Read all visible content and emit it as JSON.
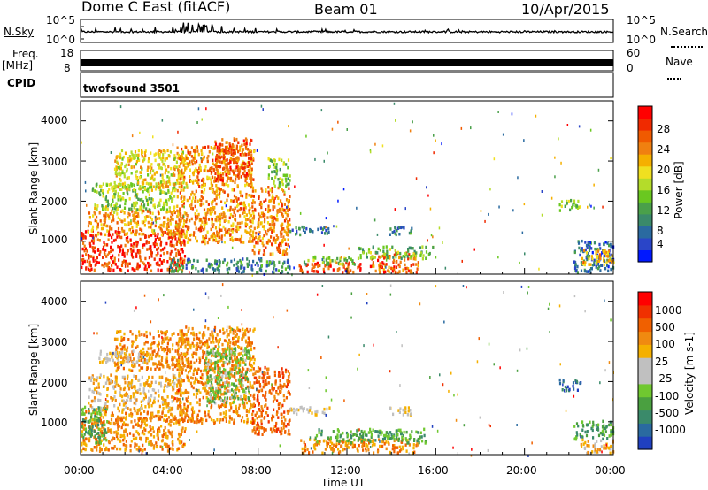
{
  "header": {
    "station": "Dome C East (fitACF)",
    "beam": "Beam 01",
    "date": "10/Apr/2015"
  },
  "strip_panels": {
    "nsky": {
      "label": "N.Sky",
      "ticks": [
        "10^5",
        "10^0"
      ]
    },
    "nsearch": {
      "label": "N.Search",
      "ticks": [
        "10^5",
        "10^0"
      ]
    },
    "freq": {
      "label_top": "Freq.",
      "label_unit": "[MHz]",
      "ticks": [
        "18",
        "8"
      ]
    },
    "nave": {
      "label": "Nave",
      "ticks": [
        "60",
        "0"
      ]
    },
    "cpid": {
      "label": "CPID",
      "value": "twofsound 3501"
    }
  },
  "chart_data": [
    {
      "type": "heatmap",
      "name": "power",
      "ylabel": "Slant Range [km]",
      "xlabel": "Time UT",
      "x_ticks": [
        "00:00",
        "04:00",
        "08:00",
        "12:00",
        "16:00",
        "20:00",
        "00:00"
      ],
      "x_range_hours": [
        0,
        24
      ],
      "y_ticks": [
        1000,
        2000,
        3000,
        4000
      ],
      "y_range_km": [
        180,
        4500
      ],
      "colorbar": {
        "label": "Power [dB]",
        "ticks": [
          "28",
          "24",
          "20",
          "16",
          "12",
          "8",
          "4"
        ],
        "range": [
          0,
          30
        ],
        "colors": [
          "#0018ff",
          "#2a45c8",
          "#2a6aa0",
          "#3a8a6a",
          "#4aa04a",
          "#6ac820",
          "#b4dc2a",
          "#f0e020",
          "#f5b000",
          "#f08010",
          "#f05a00",
          "#f02a00",
          "#ff0000"
        ]
      },
      "regions": [
        {
          "t0": 0.0,
          "t1": 4.7,
          "r0": 300,
          "r1": 1300,
          "value": 27
        },
        {
          "t0": 0.3,
          "t1": 4.5,
          "r0": 1200,
          "r1": 1800,
          "value": 21
        },
        {
          "t0": 0.5,
          "t1": 4.2,
          "r0": 1800,
          "r1": 2500,
          "value": 14
        },
        {
          "t0": 1.5,
          "t1": 4.8,
          "r0": 2300,
          "r1": 3300,
          "value": 18
        },
        {
          "t0": 4.3,
          "t1": 7.8,
          "r0": 1000,
          "r1": 3400,
          "value": 22
        },
        {
          "t0": 6.0,
          "t1": 7.7,
          "r0": 2500,
          "r1": 3600,
          "value": 26
        },
        {
          "t0": 7.7,
          "t1": 9.4,
          "r0": 700,
          "r1": 2400,
          "value": 23
        },
        {
          "t0": 8.4,
          "t1": 9.4,
          "r0": 2400,
          "r1": 3100,
          "value": 13
        },
        {
          "t0": 4.0,
          "t1": 9.4,
          "r0": 250,
          "r1": 600,
          "value": 7
        },
        {
          "t0": 9.4,
          "t1": 11.2,
          "r0": 1200,
          "r1": 1400,
          "value": 6
        },
        {
          "t0": 13.9,
          "t1": 14.9,
          "r0": 1200,
          "r1": 1400,
          "value": 7
        },
        {
          "t0": 9.8,
          "t1": 12.6,
          "r0": 250,
          "r1": 500,
          "value": 27
        },
        {
          "t0": 10.0,
          "t1": 12.5,
          "r0": 450,
          "r1": 650,
          "value": 13
        },
        {
          "t0": 13.0,
          "t1": 15.2,
          "r0": 250,
          "r1": 750,
          "value": 25
        },
        {
          "t0": 12.5,
          "t1": 16.0,
          "r0": 600,
          "r1": 900,
          "value": 12
        },
        {
          "t0": 21.5,
          "t1": 22.5,
          "r0": 1800,
          "r1": 2100,
          "value": 14
        },
        {
          "t0": 22.2,
          "t1": 24.0,
          "r0": 250,
          "r1": 1050,
          "value": 5
        },
        {
          "t0": 22.5,
          "t1": 24.0,
          "r0": 450,
          "r1": 850,
          "value": 20
        }
      ]
    },
    {
      "type": "heatmap",
      "name": "velocity",
      "ylabel": "Slant Range [km]",
      "xlabel": "Time UT",
      "x_ticks": [
        "00:00",
        "04:00",
        "08:00",
        "12:00",
        "16:00",
        "20:00",
        "00:00"
      ],
      "x_range_hours": [
        0,
        24
      ],
      "y_ticks": [
        1000,
        2000,
        3000,
        4000
      ],
      "y_range_km": [
        180,
        4500
      ],
      "colorbar": {
        "label": "Velocity [m s-1]",
        "ticks": [
          "1000",
          "500",
          "100",
          "25",
          "-25",
          "-100",
          "-500",
          "-1000"
        ],
        "colors": [
          "#2040c0",
          "#2a6aa0",
          "#3a8a6a",
          "#4aa040",
          "#70c830",
          "#c0c0c0",
          "#c0c0c0",
          "#f5b000",
          "#f08a10",
          "#f06000",
          "#f03000",
          "#ff0000"
        ]
      },
      "regions": [
        {
          "t0": 0.0,
          "t1": 4.7,
          "r0": 300,
          "r1": 1300,
          "value": 8
        },
        {
          "t0": 0.0,
          "t1": 1.2,
          "r0": 500,
          "r1": 1400,
          "value": 3
        },
        {
          "t0": 0.3,
          "t1": 4.5,
          "r0": 1300,
          "r1": 2200,
          "value": 7
        },
        {
          "t0": 1.5,
          "t1": 4.8,
          "r0": 2300,
          "r1": 3300,
          "value": 8
        },
        {
          "t0": 0.8,
          "t1": 3.2,
          "r0": 2500,
          "r1": 2800,
          "value": 6
        },
        {
          "t0": 4.3,
          "t1": 7.8,
          "r0": 1000,
          "r1": 3400,
          "value": 8
        },
        {
          "t0": 5.6,
          "t1": 7.6,
          "r0": 1500,
          "r1": 2900,
          "value": 4
        },
        {
          "t0": 7.7,
          "t1": 9.4,
          "r0": 700,
          "r1": 2400,
          "value": 9
        },
        {
          "t0": 9.4,
          "t1": 11.2,
          "r0": 1200,
          "r1": 1400,
          "value": 6
        },
        {
          "t0": 13.9,
          "t1": 14.9,
          "r0": 1200,
          "r1": 1400,
          "value": 6
        },
        {
          "t0": 9.8,
          "t1": 15.2,
          "r0": 250,
          "r1": 600,
          "value": 8
        },
        {
          "t0": 10.5,
          "t1": 15.5,
          "r0": 500,
          "r1": 850,
          "value": 3
        },
        {
          "t0": 21.5,
          "t1": 22.5,
          "r0": 1800,
          "r1": 2100,
          "value": 1
        },
        {
          "t0": 22.2,
          "t1": 24.0,
          "r0": 600,
          "r1": 1050,
          "value": 3
        },
        {
          "t0": 22.5,
          "t1": 24.0,
          "r0": 250,
          "r1": 600,
          "value": 7
        }
      ]
    }
  ]
}
